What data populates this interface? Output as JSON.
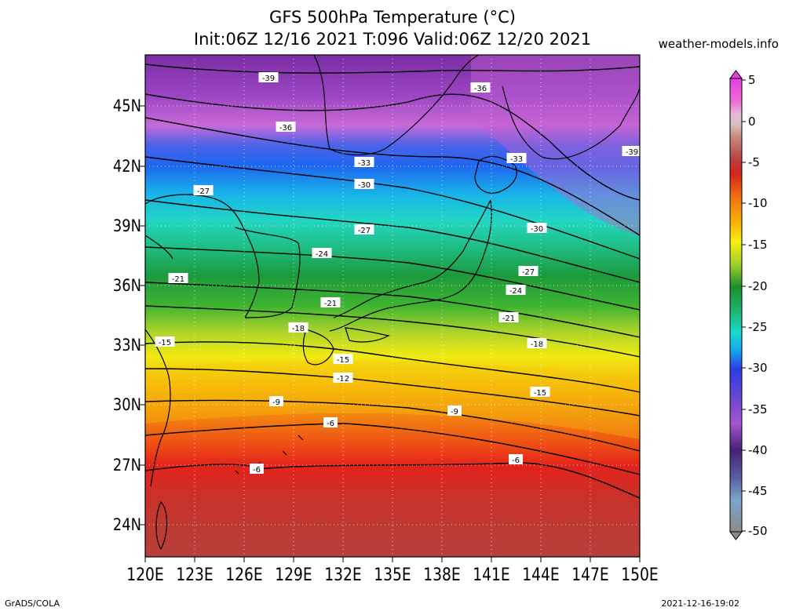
{
  "header": {
    "title_line1": "GFS 500hPa Temperature (°C)",
    "title_line2": "Init:06Z 12/16 2021 T:096 Valid:06Z 12/20 2021",
    "site": "weather-models.info"
  },
  "footer": {
    "left": "GrADS/COLA",
    "right": "2021-12-16-19:02"
  },
  "axes": {
    "lat_labels": [
      "45N",
      "42N",
      "39N",
      "36N",
      "33N",
      "30N",
      "27N",
      "24N"
    ],
    "lon_labels": [
      "120E",
      "123E",
      "126E",
      "129E",
      "132E",
      "135E",
      "138E",
      "141E",
      "144E",
      "147E",
      "150E"
    ]
  },
  "colorbar": {
    "labels": [
      "5",
      "0",
      "-5",
      "-10",
      "-15",
      "-20",
      "-25",
      "-30",
      "-35",
      "-40",
      "-45",
      "-50"
    ]
  },
  "contour_labels": [
    "-39",
    "-36",
    "-36",
    "-39",
    "-33",
    "-33",
    "-30",
    "-30",
    "-27",
    "-27",
    "-24",
    "-27",
    "-21",
    "-24",
    "-21",
    "-21",
    "-18",
    "-15",
    "-18",
    "-15",
    "-12",
    "-9",
    "-9",
    "-15",
    "-6",
    "-6",
    "-6"
  ],
  "colors": {
    "background": "#ffffff",
    "coast": "#000000",
    "isotherm": "#000000"
  }
}
